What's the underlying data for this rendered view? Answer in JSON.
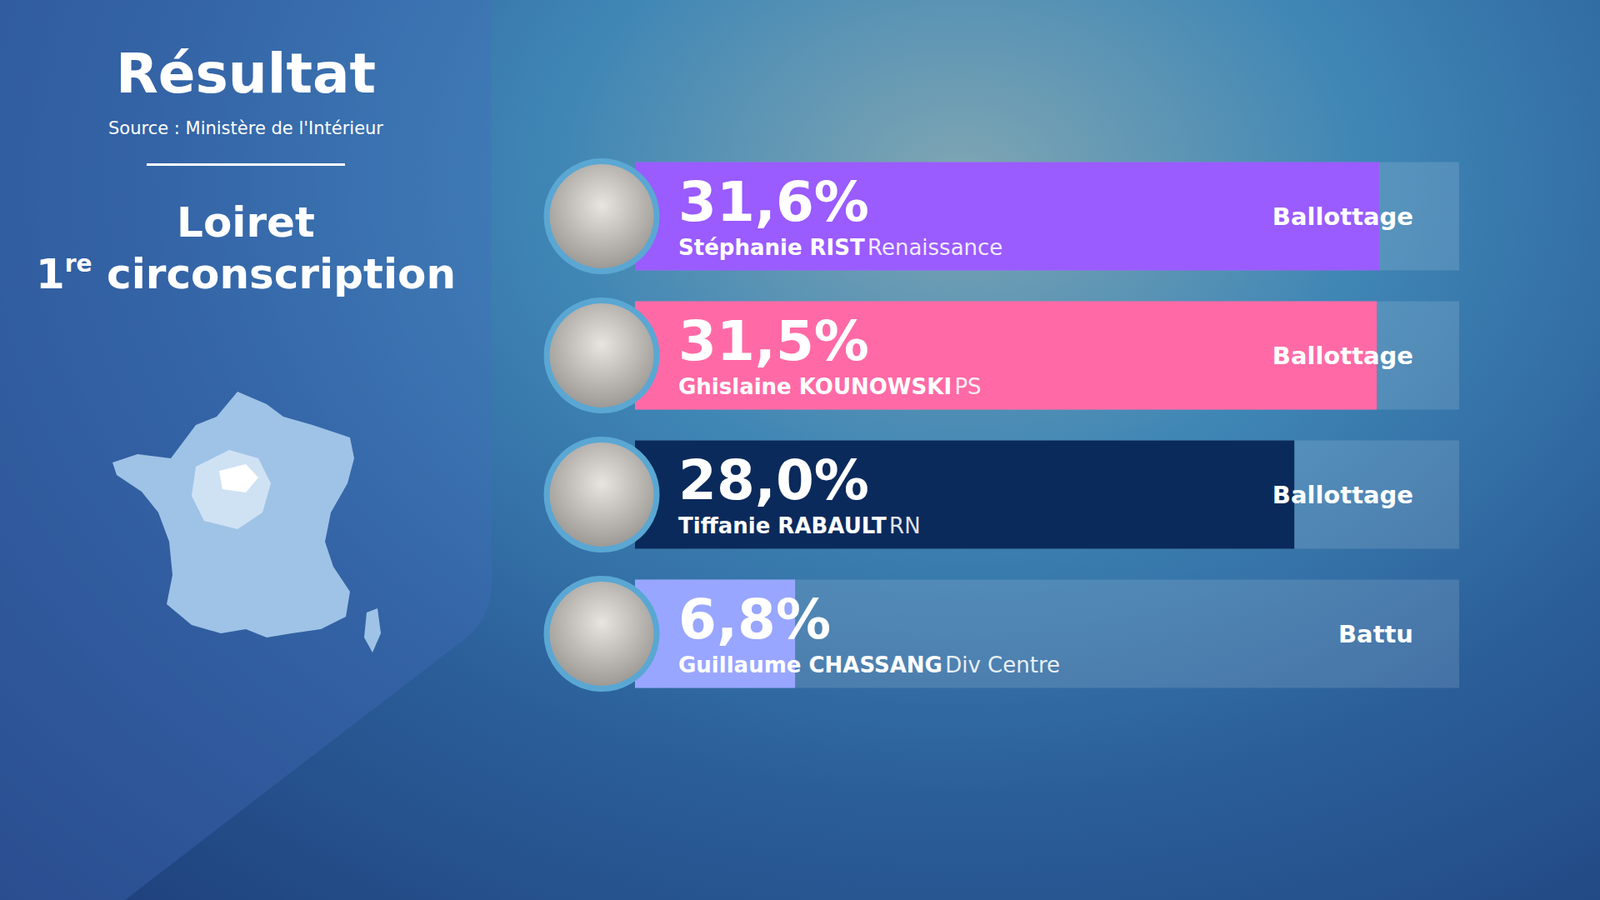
{
  "chart_data": {
    "type": "bar",
    "orientation": "horizontal",
    "title": "Résultat",
    "source": "Source : Ministère de l'Intérieur",
    "subtitle": [
      "Loiret",
      "1re circonscription"
    ],
    "categories": [
      "Stéphanie RIST",
      "Ghislaine KOUNOWSKI",
      "Tiffanie RABAULT",
      "Guillaume CHASSANG"
    ],
    "parties": [
      "Renaissance",
      "PS",
      "RN",
      "Div Centre"
    ],
    "values": [
      31.6,
      31.5,
      28.0,
      6.8
    ],
    "value_labels": [
      "31,6%",
      "31,5%",
      "28,0%",
      "6,8%"
    ],
    "status": [
      "Ballottage",
      "Ballottage",
      "Ballottage",
      "Battu"
    ],
    "colors": [
      "#9a5bff",
      "#ff6aa6",
      "#0b2a5c",
      "#98a6ff"
    ],
    "xlim": [
      0,
      35
    ],
    "data_labels": true,
    "tick_labels": false,
    "grid": false
  }
}
